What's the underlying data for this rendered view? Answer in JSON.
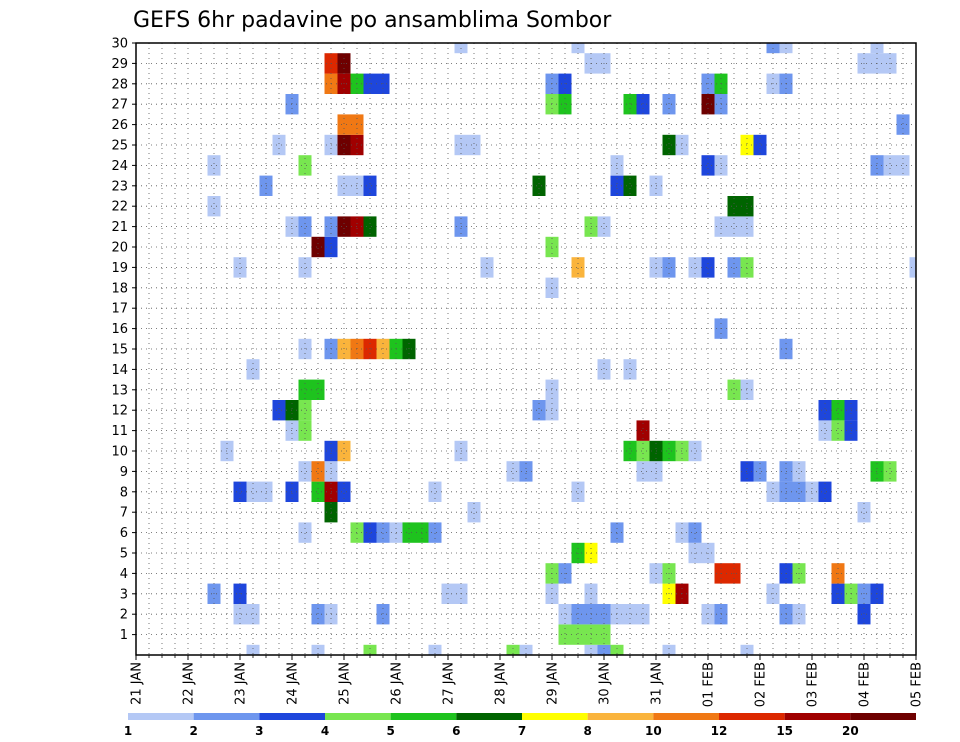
{
  "chart_data": {
    "type": "heatmap",
    "title": "GEFS 6hr padavine po ansamblima Sombor",
    "xlabel": "",
    "ylabel": "",
    "x_tick_labels": [
      "21 JAN",
      "22 JAN",
      "23 JAN",
      "24 JAN",
      "25 JAN",
      "26 JAN",
      "27 JAN",
      "28 JAN",
      "29 JAN",
      "30 JAN",
      "31 JAN",
      "01 FEB",
      "02 FEB",
      "03 FEB",
      "04 FEB",
      "05 FEB"
    ],
    "y_tick_labels": [
      "1",
      "2",
      "3",
      "4",
      "5",
      "6",
      "7",
      "8",
      "9",
      "10",
      "11",
      "12",
      "13",
      "14",
      "15",
      "16",
      "17",
      "18",
      "19",
      "20",
      "21",
      "22",
      "23",
      "24",
      "25",
      "26",
      "27",
      "28",
      "29",
      "30"
    ],
    "ylim": [
      0,
      30
    ],
    "time_steps": 60,
    "members": 31,
    "grid": true,
    "colorbar": {
      "levels": [
        "1",
        "2",
        "3",
        "4",
        "5",
        "6",
        "7",
        "8",
        "10",
        "12",
        "15",
        "20"
      ],
      "colors": [
        "#b4c8f5",
        "#6e96ee",
        "#1e46dc",
        "#78e650",
        "#1ec31e",
        "#006400",
        "#ffff00",
        "#fab43c",
        "#f07814",
        "#dc2800",
        "#a00000",
        "#6e0000"
      ]
    },
    "cells": [
      [
        0,
        9,
        1
      ],
      [
        0,
        14,
        1
      ],
      [
        0,
        18,
        4
      ],
      [
        0,
        23,
        1
      ],
      [
        0,
        29,
        4
      ],
      [
        0,
        30,
        1
      ],
      [
        0,
        35,
        1
      ],
      [
        0,
        36,
        2
      ],
      [
        0,
        37,
        4
      ],
      [
        0,
        41,
        1
      ],
      [
        0,
        47,
        1
      ],
      [
        1,
        33,
        4
      ],
      [
        1,
        34,
        4
      ],
      [
        1,
        35,
        4
      ],
      [
        1,
        36,
        4
      ],
      [
        2,
        8,
        1
      ],
      [
        2,
        9,
        1
      ],
      [
        2,
        14,
        2
      ],
      [
        2,
        15,
        1
      ],
      [
        2,
        19,
        2
      ],
      [
        2,
        33,
        1
      ],
      [
        2,
        34,
        2
      ],
      [
        2,
        35,
        2
      ],
      [
        2,
        36,
        2
      ],
      [
        2,
        37,
        1
      ],
      [
        2,
        38,
        1
      ],
      [
        2,
        39,
        1
      ],
      [
        2,
        44,
        1
      ],
      [
        2,
        45,
        2
      ],
      [
        2,
        50,
        2
      ],
      [
        2,
        51,
        1
      ],
      [
        2,
        56,
        3
      ],
      [
        3,
        6,
        2
      ],
      [
        3,
        8,
        3
      ],
      [
        3,
        24,
        1
      ],
      [
        3,
        25,
        1
      ],
      [
        3,
        32,
        1
      ],
      [
        3,
        35,
        1
      ],
      [
        3,
        41,
        7
      ],
      [
        3,
        42,
        11
      ],
      [
        3,
        49,
        1
      ],
      [
        3,
        54,
        3
      ],
      [
        3,
        55,
        4
      ],
      [
        3,
        56,
        2
      ],
      [
        3,
        57,
        3
      ],
      [
        4,
        32,
        4
      ],
      [
        4,
        33,
        2
      ],
      [
        4,
        40,
        1
      ],
      [
        4,
        41,
        4
      ],
      [
        4,
        45,
        10
      ],
      [
        4,
        46,
        10
      ],
      [
        4,
        50,
        3
      ],
      [
        4,
        51,
        4
      ],
      [
        4,
        54,
        9
      ],
      [
        5,
        34,
        5
      ],
      [
        5,
        35,
        7
      ],
      [
        5,
        43,
        1
      ],
      [
        5,
        44,
        1
      ],
      [
        6,
        13,
        1
      ],
      [
        6,
        17,
        4
      ],
      [
        6,
        18,
        3
      ],
      [
        6,
        19,
        2
      ],
      [
        6,
        20,
        1
      ],
      [
        6,
        21,
        5
      ],
      [
        6,
        22,
        5
      ],
      [
        6,
        23,
        2
      ],
      [
        6,
        37,
        2
      ],
      [
        6,
        42,
        1
      ],
      [
        6,
        43,
        2
      ],
      [
        7,
        15,
        6
      ],
      [
        7,
        26,
        1
      ],
      [
        7,
        56,
        1
      ],
      [
        8,
        8,
        3
      ],
      [
        8,
        9,
        1
      ],
      [
        8,
        10,
        1
      ],
      [
        8,
        12,
        3
      ],
      [
        8,
        14,
        5
      ],
      [
        8,
        15,
        11
      ],
      [
        8,
        16,
        3
      ],
      [
        8,
        23,
        1
      ],
      [
        8,
        34,
        1
      ],
      [
        8,
        49,
        1
      ],
      [
        8,
        50,
        2
      ],
      [
        8,
        51,
        2
      ],
      [
        8,
        52,
        1
      ],
      [
        8,
        53,
        3
      ],
      [
        9,
        13,
        1
      ],
      [
        9,
        14,
        9
      ],
      [
        9,
        15,
        1
      ],
      [
        9,
        29,
        1
      ],
      [
        9,
        30,
        2
      ],
      [
        9,
        39,
        1
      ],
      [
        9,
        40,
        1
      ],
      [
        9,
        47,
        3
      ],
      [
        9,
        48,
        2
      ],
      [
        9,
        50,
        2
      ],
      [
        9,
        51,
        1
      ],
      [
        9,
        57,
        5
      ],
      [
        9,
        58,
        4
      ],
      [
        10,
        7,
        1
      ],
      [
        10,
        15,
        3
      ],
      [
        10,
        16,
        8
      ],
      [
        10,
        25,
        1
      ],
      [
        10,
        38,
        5
      ],
      [
        10,
        39,
        4
      ],
      [
        10,
        40,
        6
      ],
      [
        10,
        41,
        5
      ],
      [
        10,
        42,
        4
      ],
      [
        10,
        43,
        1
      ],
      [
        11,
        12,
        1
      ],
      [
        11,
        13,
        4
      ],
      [
        11,
        39,
        11
      ],
      [
        11,
        53,
        1
      ],
      [
        11,
        54,
        4
      ],
      [
        11,
        55,
        3
      ],
      [
        12,
        11,
        3
      ],
      [
        12,
        12,
        6
      ],
      [
        12,
        13,
        4
      ],
      [
        12,
        31,
        2
      ],
      [
        12,
        32,
        1
      ],
      [
        12,
        53,
        3
      ],
      [
        12,
        54,
        5
      ],
      [
        12,
        55,
        3
      ],
      [
        13,
        13,
        5
      ],
      [
        13,
        14,
        5
      ],
      [
        13,
        32,
        1
      ],
      [
        13,
        46,
        4
      ],
      [
        13,
        47,
        1
      ],
      [
        14,
        9,
        1
      ],
      [
        14,
        36,
        1
      ],
      [
        14,
        38,
        1
      ],
      [
        15,
        13,
        1
      ],
      [
        15,
        15,
        2
      ],
      [
        15,
        16,
        8
      ],
      [
        15,
        17,
        9
      ],
      [
        15,
        18,
        10
      ],
      [
        15,
        19,
        8
      ],
      [
        15,
        20,
        5
      ],
      [
        15,
        21,
        6
      ],
      [
        15,
        50,
        2
      ],
      [
        16,
        45,
        2
      ],
      [
        18,
        32,
        1
      ],
      [
        19,
        8,
        1
      ],
      [
        19,
        13,
        1
      ],
      [
        19,
        27,
        1
      ],
      [
        19,
        34,
        8
      ],
      [
        19,
        40,
        1
      ],
      [
        19,
        41,
        2
      ],
      [
        19,
        43,
        1
      ],
      [
        19,
        44,
        3
      ],
      [
        19,
        46,
        2
      ],
      [
        19,
        47,
        4
      ],
      [
        19,
        60,
        1
      ],
      [
        20,
        14,
        12
      ],
      [
        20,
        15,
        3
      ],
      [
        20,
        32,
        4
      ],
      [
        21,
        12,
        1
      ],
      [
        21,
        13,
        2
      ],
      [
        21,
        15,
        2
      ],
      [
        21,
        16,
        12
      ],
      [
        21,
        17,
        11
      ],
      [
        21,
        18,
        6
      ],
      [
        21,
        25,
        2
      ],
      [
        21,
        35,
        4
      ],
      [
        21,
        36,
        1
      ],
      [
        21,
        45,
        1
      ],
      [
        21,
        46,
        1
      ],
      [
        21,
        47,
        1
      ],
      [
        22,
        6,
        1
      ],
      [
        22,
        46,
        6
      ],
      [
        22,
        47,
        6
      ],
      [
        23,
        10,
        2
      ],
      [
        23,
        16,
        1
      ],
      [
        23,
        17,
        1
      ],
      [
        23,
        18,
        3
      ],
      [
        23,
        31,
        6
      ],
      [
        23,
        37,
        3
      ],
      [
        23,
        38,
        6
      ],
      [
        23,
        40,
        1
      ],
      [
        24,
        6,
        1
      ],
      [
        24,
        13,
        4
      ],
      [
        24,
        37,
        1
      ],
      [
        24,
        44,
        3
      ],
      [
        24,
        45,
        1
      ],
      [
        24,
        57,
        2
      ],
      [
        24,
        58,
        1
      ],
      [
        24,
        59,
        1
      ],
      [
        25,
        11,
        1
      ],
      [
        25,
        15,
        1
      ],
      [
        25,
        16,
        12
      ],
      [
        25,
        17,
        11
      ],
      [
        25,
        25,
        1
      ],
      [
        25,
        26,
        1
      ],
      [
        25,
        41,
        6
      ],
      [
        25,
        42,
        1
      ],
      [
        25,
        47,
        7
      ],
      [
        25,
        48,
        3
      ],
      [
        26,
        16,
        9
      ],
      [
        26,
        17,
        9
      ],
      [
        26,
        59,
        2
      ],
      [
        27,
        12,
        2
      ],
      [
        27,
        32,
        4
      ],
      [
        27,
        33,
        5
      ],
      [
        27,
        38,
        5
      ],
      [
        27,
        39,
        3
      ],
      [
        27,
        41,
        2
      ],
      [
        27,
        44,
        12
      ],
      [
        27,
        45,
        2
      ],
      [
        28,
        15,
        9
      ],
      [
        28,
        16,
        11
      ],
      [
        28,
        17,
        5
      ],
      [
        28,
        18,
        3
      ],
      [
        28,
        19,
        3
      ],
      [
        28,
        32,
        2
      ],
      [
        28,
        33,
        3
      ],
      [
        28,
        44,
        2
      ],
      [
        28,
        45,
        5
      ],
      [
        28,
        49,
        1
      ],
      [
        28,
        50,
        2
      ],
      [
        29,
        15,
        10
      ],
      [
        29,
        16,
        12
      ],
      [
        29,
        35,
        1
      ],
      [
        29,
        36,
        1
      ],
      [
        29,
        56,
        1
      ],
      [
        29,
        57,
        1
      ],
      [
        29,
        58,
        1
      ],
      [
        30,
        25,
        1
      ],
      [
        30,
        34,
        1
      ],
      [
        30,
        49,
        2
      ],
      [
        30,
        50,
        1
      ],
      [
        30,
        57,
        1
      ]
    ]
  }
}
